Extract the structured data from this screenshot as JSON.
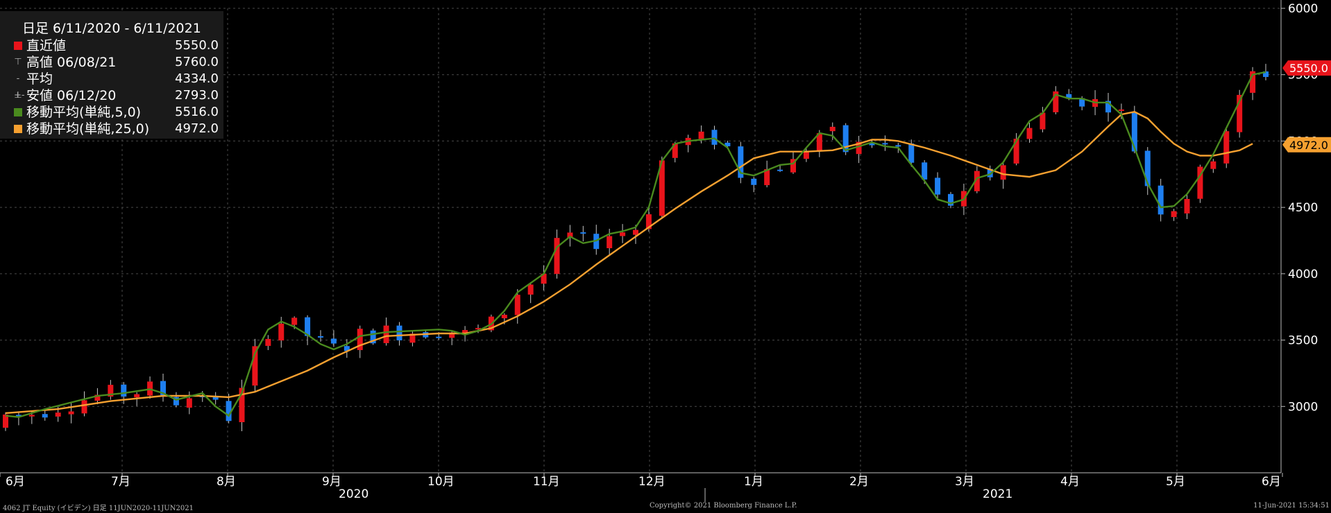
{
  "chart_data": {
    "type": "candlestick",
    "ylim": [
      2500,
      6000
    ],
    "y_ticks": [
      3000,
      3500,
      4000,
      4500,
      5000,
      5500,
      6000
    ],
    "y_tick_labels": [
      "3000",
      "3500",
      "4000",
      "4500",
      "5000",
      "5500",
      "6000"
    ],
    "grid": true,
    "x_month_labels": [
      "6月",
      "7月",
      "8月",
      "9月",
      "10月",
      "11月",
      "12月",
      "1月",
      "2月",
      "3月",
      "4月",
      "5月",
      "6月"
    ],
    "x_year_labels": [
      "2020",
      "2021"
    ],
    "legend": {
      "header": "日足 6/11/2020 - 6/11/2021",
      "rows": [
        {
          "label": "直近値",
          "value": "5550.0",
          "color": "#e8141b"
        },
        {
          "label": "高値 06/08/21",
          "value": "5760.0"
        },
        {
          "label": "平均",
          "value": "4334.0"
        },
        {
          "label": "安値 06/12/20",
          "value": "2793.0"
        },
        {
          "label": "移動平均(単純,5,0)",
          "value": "5516.0",
          "color": "#4a8a1e"
        },
        {
          "label": "移動平均(単純,25,0)",
          "value": "4972.0",
          "color": "#f5a030"
        }
      ]
    },
    "price_badges": [
      {
        "text": "5550.0",
        "value": 5550,
        "color": "#e8141b"
      },
      {
        "text": "4972.0",
        "value": 4972,
        "color": "#f5a030"
      }
    ],
    "colors": {
      "up": "#e8141b",
      "down": "#1e7ff0",
      "ma5": "#4a8a1e",
      "ma25": "#f5a030",
      "grid": "#4a4a4a"
    },
    "series": [
      {
        "name": "移動平均(単純,5,0)",
        "values": [
          [
            0,
            2930
          ],
          [
            1,
            2920
          ],
          [
            3,
            2980
          ],
          [
            5,
            3030
          ],
          [
            7,
            3080
          ],
          [
            9,
            3100
          ],
          [
            11,
            3130
          ],
          [
            12,
            3100
          ],
          [
            13,
            3050
          ],
          [
            15,
            3100
          ],
          [
            16,
            3000
          ],
          [
            17,
            2930
          ],
          [
            18,
            3100
          ],
          [
            19,
            3400
          ],
          [
            20,
            3580
          ],
          [
            21,
            3640
          ],
          [
            22,
            3600
          ],
          [
            23,
            3540
          ],
          [
            24,
            3470
          ],
          [
            25,
            3430
          ],
          [
            26,
            3470
          ],
          [
            27,
            3530
          ],
          [
            29,
            3560
          ],
          [
            31,
            3570
          ],
          [
            33,
            3580
          ],
          [
            34,
            3570
          ],
          [
            35,
            3540
          ],
          [
            36,
            3570
          ],
          [
            37,
            3620
          ],
          [
            38,
            3720
          ],
          [
            39,
            3860
          ],
          [
            41,
            4000
          ],
          [
            42,
            4200
          ],
          [
            43,
            4280
          ],
          [
            44,
            4230
          ],
          [
            45,
            4250
          ],
          [
            46,
            4300
          ],
          [
            47,
            4320
          ],
          [
            48,
            4350
          ],
          [
            49,
            4500
          ],
          [
            50,
            4850
          ],
          [
            51,
            4980
          ],
          [
            52,
            5000
          ],
          [
            53,
            5010
          ],
          [
            54,
            5020
          ],
          [
            55,
            4950
          ],
          [
            56,
            4760
          ],
          [
            57,
            4740
          ],
          [
            58,
            4780
          ],
          [
            59,
            4820
          ],
          [
            60,
            4830
          ],
          [
            61,
            4950
          ],
          [
            62,
            5060
          ],
          [
            63,
            5040
          ],
          [
            64,
            4930
          ],
          [
            65,
            4960
          ],
          [
            66,
            4990
          ],
          [
            67,
            4960
          ],
          [
            68,
            4950
          ],
          [
            69,
            4820
          ],
          [
            70,
            4700
          ],
          [
            71,
            4560
          ],
          [
            72,
            4530
          ],
          [
            73,
            4560
          ],
          [
            74,
            4720
          ],
          [
            75,
            4750
          ],
          [
            76,
            4840
          ],
          [
            77,
            5000
          ],
          [
            78,
            5150
          ],
          [
            79,
            5210
          ],
          [
            80,
            5350
          ],
          [
            81,
            5320
          ],
          [
            82,
            5320
          ],
          [
            83,
            5290
          ],
          [
            84,
            5290
          ],
          [
            85,
            5200
          ],
          [
            86,
            4950
          ],
          [
            87,
            4680
          ],
          [
            88,
            4500
          ],
          [
            89,
            4510
          ],
          [
            90,
            4600
          ],
          [
            91,
            4740
          ],
          [
            92,
            4900
          ],
          [
            93,
            5100
          ],
          [
            94,
            5300
          ],
          [
            95,
            5500
          ],
          [
            96,
            5520
          ]
        ]
      },
      {
        "name": "移動平均(単純,25,0)",
        "values": [
          [
            0,
            2950
          ],
          [
            4,
            2980
          ],
          [
            8,
            3040
          ],
          [
            12,
            3080
          ],
          [
            15,
            3080
          ],
          [
            17,
            3070
          ],
          [
            19,
            3110
          ],
          [
            21,
            3190
          ],
          [
            23,
            3270
          ],
          [
            25,
            3370
          ],
          [
            27,
            3460
          ],
          [
            29,
            3530
          ],
          [
            31,
            3540
          ],
          [
            33,
            3550
          ],
          [
            35,
            3550
          ],
          [
            37,
            3590
          ],
          [
            39,
            3680
          ],
          [
            41,
            3790
          ],
          [
            43,
            3920
          ],
          [
            45,
            4070
          ],
          [
            47,
            4210
          ],
          [
            49,
            4350
          ],
          [
            51,
            4490
          ],
          [
            53,
            4620
          ],
          [
            55,
            4740
          ],
          [
            57,
            4870
          ],
          [
            59,
            4920
          ],
          [
            61,
            4920
          ],
          [
            63,
            4930
          ],
          [
            65,
            4980
          ],
          [
            66,
            5010
          ],
          [
            67,
            5010
          ],
          [
            68,
            5000
          ],
          [
            70,
            4950
          ],
          [
            72,
            4890
          ],
          [
            74,
            4820
          ],
          [
            76,
            4750
          ],
          [
            78,
            4730
          ],
          [
            80,
            4780
          ],
          [
            82,
            4920
          ],
          [
            84,
            5110
          ],
          [
            85,
            5200
          ],
          [
            86,
            5220
          ],
          [
            87,
            5170
          ],
          [
            88,
            5070
          ],
          [
            89,
            4980
          ],
          [
            90,
            4920
          ],
          [
            91,
            4890
          ],
          [
            92,
            4890
          ],
          [
            93,
            4910
          ],
          [
            94,
            4930
          ],
          [
            95,
            4980
          ]
        ]
      }
    ]
  },
  "footer": {
    "left": "4062 JT Equity (イビデン)  日足 11JUN2020-11JUN2021",
    "center": "Copyright© 2021 Bloomberg Finance L.P.",
    "right": "11-Jun-2021 15:34:51"
  }
}
